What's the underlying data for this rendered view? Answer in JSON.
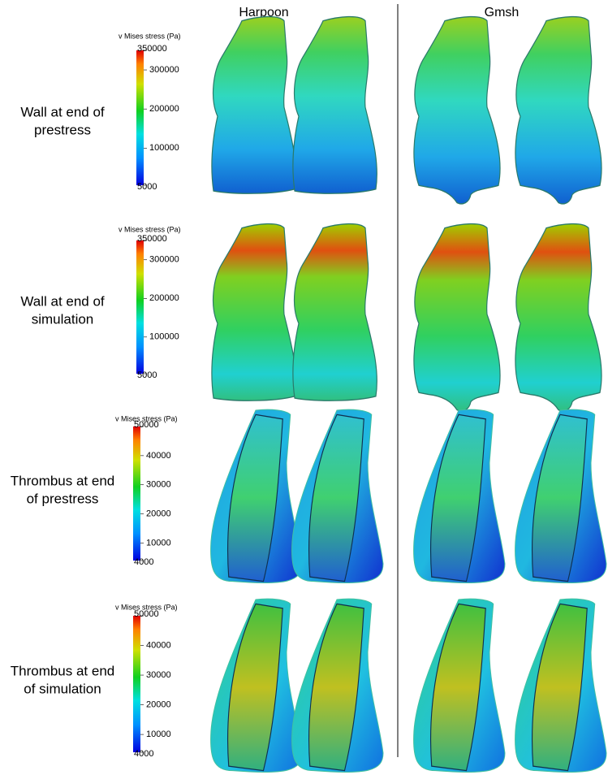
{
  "columns": [
    "Harpoon",
    "Gmsh"
  ],
  "rows": [
    {
      "label": [
        "Wall at end of",
        "prestress"
      ],
      "colorbar": {
        "title": "v Mises stress (Pa)",
        "ticks": [
          350000,
          300000,
          200000,
          100000,
          5000
        ]
      }
    },
    {
      "label": [
        "Wall at end of",
        "simulation"
      ],
      "colorbar": {
        "title": "v Mises stress (Pa)",
        "ticks": [
          350000,
          300000,
          200000,
          100000,
          5000
        ]
      }
    },
    {
      "label": [
        "Thrombus at end",
        "of prestress"
      ],
      "colorbar": {
        "title": "v Mises stress (Pa)",
        "ticks": [
          50000,
          40000,
          30000,
          20000,
          10000,
          4000
        ]
      }
    },
    {
      "label": [
        "Thrombus at end",
        "of simulation"
      ],
      "colorbar": {
        "title": "v Mises stress (Pa)",
        "ticks": [
          50000,
          40000,
          30000,
          20000,
          10000,
          4000
        ]
      }
    }
  ]
}
